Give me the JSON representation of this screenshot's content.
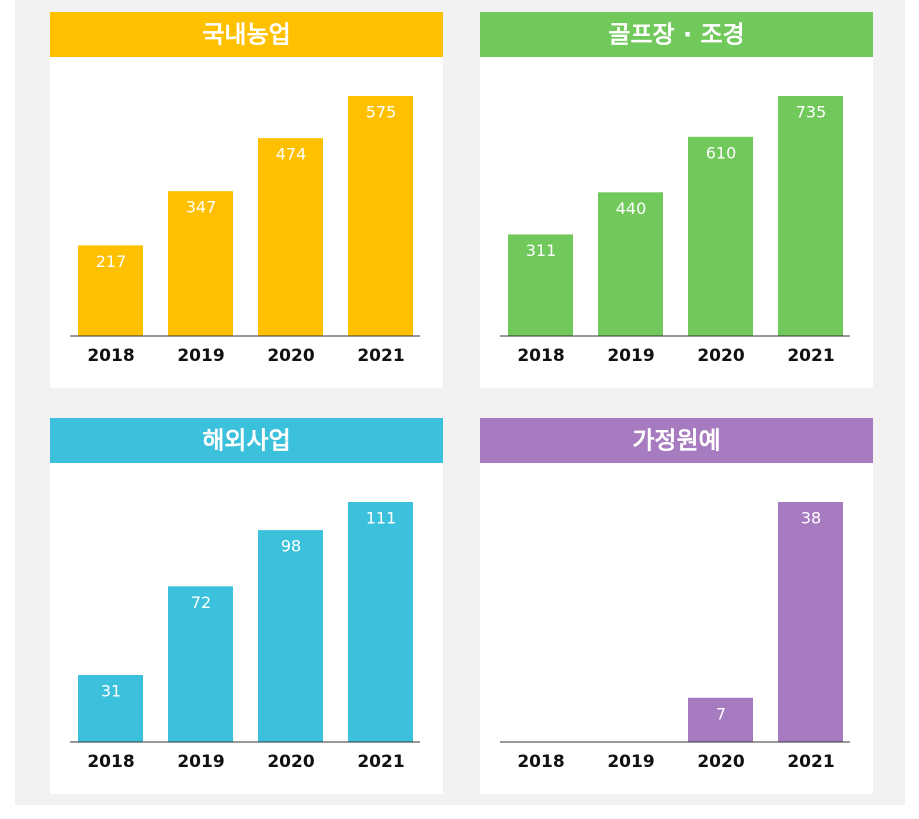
{
  "chart_data": [
    {
      "type": "bar",
      "title": "국내농업",
      "color": "#ffc000",
      "categories": [
        "2018",
        "2019",
        "2020",
        "2021"
      ],
      "values": [
        217,
        347,
        474,
        575
      ]
    },
    {
      "type": "bar",
      "title": "골프장 · 조경",
      "color": "#70c95a",
      "categories": [
        "2018",
        "2019",
        "2020",
        "2021"
      ],
      "values": [
        311,
        440,
        610,
        735
      ]
    },
    {
      "type": "bar",
      "title": "해외사업",
      "color": "#3bc1db",
      "categories": [
        "2018",
        "2019",
        "2020",
        "2021"
      ],
      "values": [
        31,
        72,
        98,
        111
      ]
    },
    {
      "type": "bar",
      "title": "가정원예",
      "color": "#a77bbf",
      "categories": [
        "2018",
        "2019",
        "2020",
        "2021"
      ],
      "values": [
        null,
        null,
        7,
        38
      ]
    }
  ]
}
